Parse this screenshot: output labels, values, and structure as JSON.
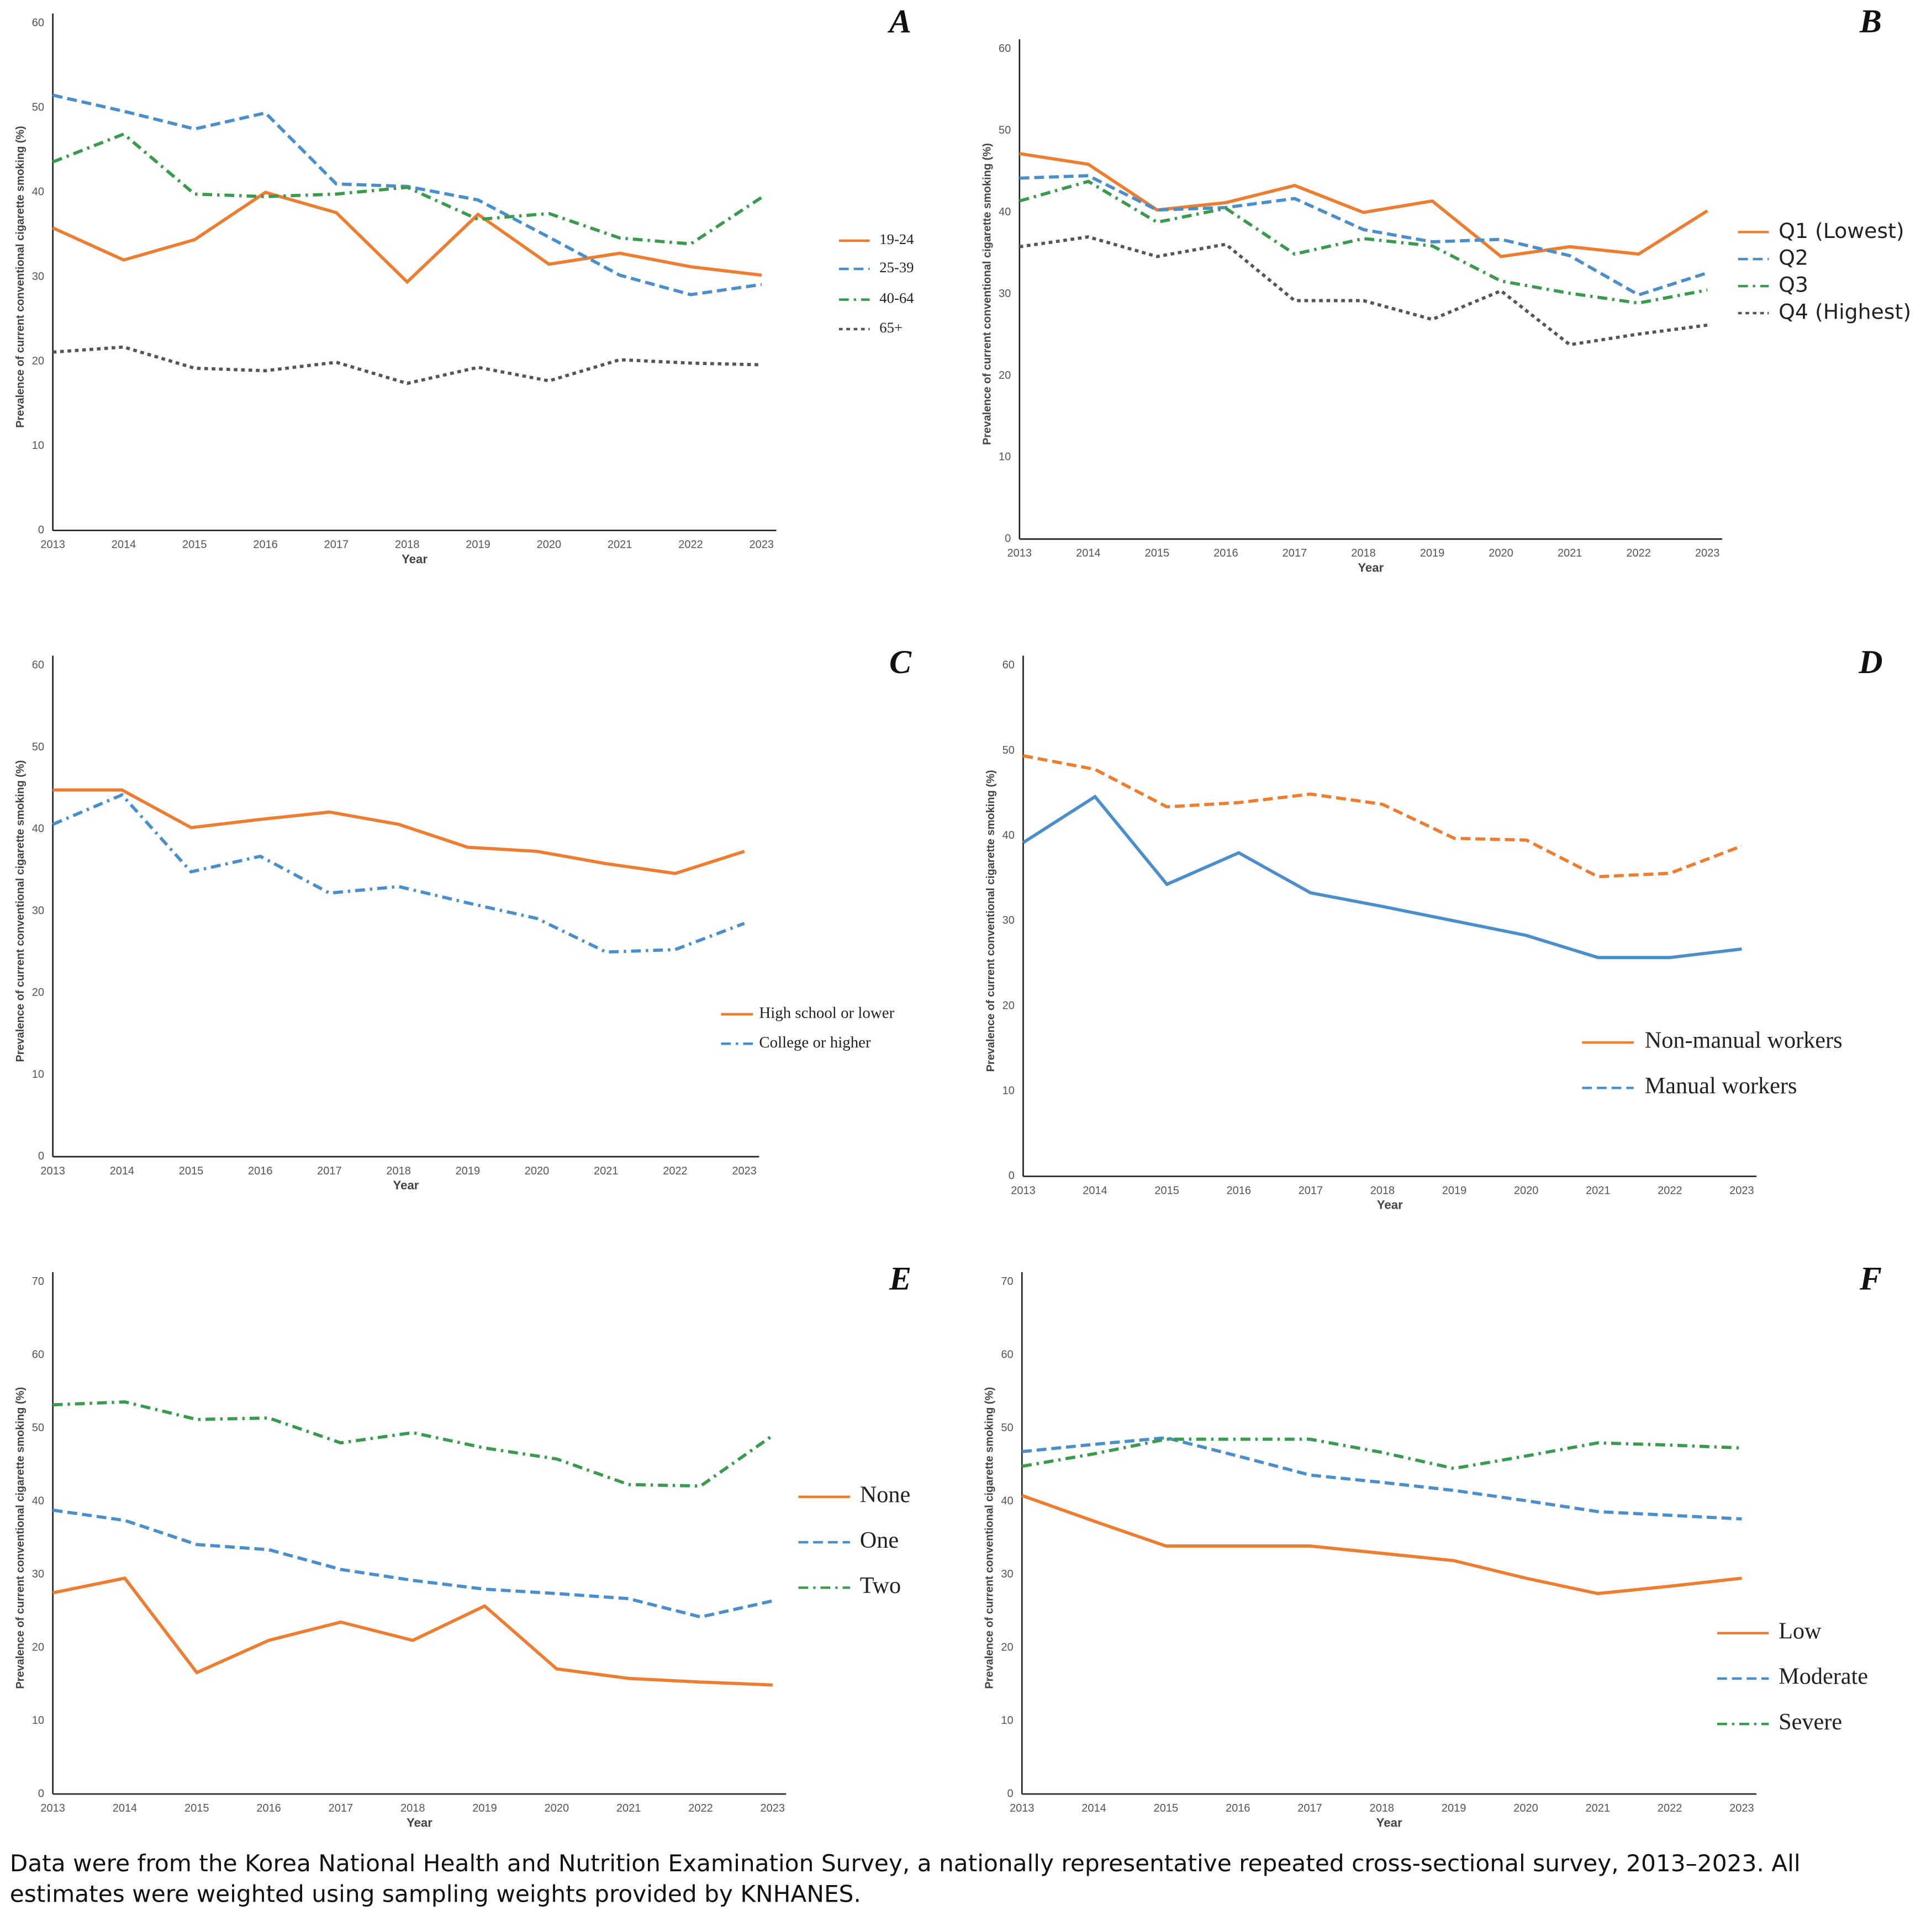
{
  "chart_data": [
    {
      "type": "line",
      "panel_label": "A",
      "y_label": "Prevalence of current conventional cigarette smoking (%)",
      "x_label": "Year",
      "categories": [
        "2013",
        "2014",
        "2015",
        "2016",
        "2017",
        "2018",
        "2019",
        "2020",
        "2021",
        "2022",
        "2023"
      ],
      "ylim": [
        0,
        60
      ],
      "yticks": [
        0,
        10,
        20,
        30,
        40,
        50,
        60
      ],
      "series": [
        {
          "name": "19-24",
          "color": "#ed7d31",
          "line_style": "solid",
          "values": [
            35.8,
            32.0,
            34.4,
            40.0,
            37.6,
            29.4,
            37.4,
            31.5,
            32.8,
            31.2,
            30.2
          ]
        },
        {
          "name": "25-39",
          "color": "#4a8fcc",
          "line_style": "dashed",
          "values": [
            51.5,
            49.6,
            47.5,
            49.4,
            41.0,
            40.7,
            39.1,
            34.7,
            30.2,
            27.9,
            29.1
          ]
        },
        {
          "name": "40-64",
          "color": "#3a9b4f",
          "line_style": "dashdot",
          "values": [
            43.6,
            46.9,
            39.8,
            39.5,
            39.8,
            40.6,
            36.8,
            37.5,
            34.6,
            33.9,
            39.4
          ]
        },
        {
          "name": "65+",
          "color": "#555555",
          "line_style": "dotted",
          "values": [
            21.1,
            21.7,
            19.2,
            18.9,
            19.9,
            17.4,
            19.3,
            17.7,
            20.2,
            19.8,
            19.6
          ]
        }
      ]
    },
    {
      "type": "line",
      "panel_label": "B",
      "y_label": "Prevalence of current conventional cigarette smoking (%)",
      "x_label": "Year",
      "categories": [
        "2013",
        "2014",
        "2015",
        "2016",
        "2017",
        "2018",
        "2019",
        "2020",
        "2021",
        "2022",
        "2023"
      ],
      "ylim": [
        0,
        60
      ],
      "yticks": [
        0,
        10,
        20,
        30,
        40,
        50,
        60
      ],
      "series": [
        {
          "name": "Q1 (Lowest)",
          "color": "#ed7d31",
          "line_style": "solid",
          "values": [
            47.2,
            45.9,
            40.3,
            41.2,
            43.3,
            40.0,
            41.4,
            34.6,
            35.8,
            34.9,
            40.2
          ]
        },
        {
          "name": "Q2",
          "color": "#4a8fcc",
          "line_style": "dashed",
          "values": [
            44.2,
            44.5,
            40.3,
            40.6,
            41.7,
            37.9,
            36.4,
            36.7,
            34.7,
            29.9,
            32.6
          ]
        },
        {
          "name": "Q3",
          "color": "#3a9b4f",
          "line_style": "dashdot",
          "values": [
            41.4,
            43.8,
            38.8,
            40.5,
            34.9,
            36.8,
            35.9,
            31.6,
            30.1,
            28.9,
            30.5
          ]
        },
        {
          "name": "Q4 (Highest)",
          "color": "#555555",
          "line_style": "dotted",
          "values": [
            35.8,
            37.0,
            34.6,
            36.1,
            29.2,
            29.2,
            26.9,
            30.4,
            23.8,
            25.1,
            26.2
          ]
        }
      ]
    },
    {
      "type": "line",
      "panel_label": "C",
      "y_label": "Prevalence of current conventional cigarette smoking (%)",
      "x_label": "Year",
      "categories": [
        "2013",
        "2014",
        "2015",
        "2016",
        "2017",
        "2018",
        "2019",
        "2020",
        "2021",
        "2022",
        "2023"
      ],
      "ylim": [
        0,
        60
      ],
      "yticks": [
        0,
        10,
        20,
        30,
        40,
        50,
        60
      ],
      "series": [
        {
          "name": "High school or lower",
          "color": "#ed7d31",
          "line_style": "solid",
          "values": [
            44.8,
            44.8,
            40.2,
            41.2,
            42.1,
            40.6,
            37.8,
            37.3,
            35.8,
            34.6,
            37.3
          ]
        },
        {
          "name": "College or higher",
          "color": "#4a8fcc",
          "line_style": "dashdot",
          "values": [
            40.6,
            44.2,
            34.8,
            36.7,
            32.2,
            33.0,
            31.0,
            29.1,
            25.0,
            25.3,
            28.5
          ]
        }
      ]
    },
    {
      "type": "line",
      "panel_label": "D",
      "y_label": "Prevalence of current conventional cigarette smoking (%)",
      "x_label": "Year",
      "categories": [
        "2013",
        "2014",
        "2015",
        "2016",
        "2017",
        "2018",
        "2019",
        "2020",
        "2021",
        "2022",
        "2023"
      ],
      "ylim": [
        0,
        60
      ],
      "yticks": [
        0,
        10,
        20,
        30,
        40,
        50,
        60
      ],
      "series": [
        {
          "name": "Non-manual workers",
          "color": "#ed7d31",
          "line_style": "dashed",
          "legend_style": "solid",
          "values": [
            49.4,
            47.8,
            43.4,
            43.9,
            44.9,
            43.7,
            39.7,
            39.5,
            35.2,
            35.6,
            38.8
          ]
        },
        {
          "name": "Manual workers",
          "color": "#4a8fcc",
          "line_style": "solid",
          "legend_style": "dashed",
          "values": [
            39.2,
            44.6,
            34.3,
            38.0,
            33.3,
            31.7,
            30.0,
            28.3,
            25.7,
            25.7,
            26.7
          ]
        }
      ]
    },
    {
      "type": "line",
      "panel_label": "E",
      "y_label": "Prevalence of current conventional cigarette smoking (%)",
      "x_label": "Year",
      "categories": [
        "2013",
        "2014",
        "2015",
        "2016",
        "2017",
        "2018",
        "2019",
        "2020",
        "2021",
        "2022",
        "2023"
      ],
      "ylim": [
        0,
        70
      ],
      "yticks": [
        0,
        10,
        20,
        30,
        40,
        50,
        60,
        70
      ],
      "series": [
        {
          "name": "None",
          "color": "#ed7d31",
          "line_style": "solid",
          "values": [
            27.5,
            29.5,
            16.6,
            21.0,
            23.5,
            21.0,
            25.7,
            17.1,
            15.8,
            15.3,
            14.9
          ]
        },
        {
          "name": "One",
          "color": "#4a8fcc",
          "line_style": "dashed",
          "values": [
            38.8,
            37.4,
            34.1,
            33.4,
            30.7,
            29.2,
            28.0,
            27.4,
            26.7,
            24.2,
            26.4
          ]
        },
        {
          "name": "Two",
          "color": "#3a9b4f",
          "line_style": "dashdot",
          "values": [
            53.2,
            53.6,
            51.2,
            51.4,
            48.0,
            49.4,
            47.3,
            45.8,
            42.3,
            42.1,
            49.0
          ]
        }
      ]
    },
    {
      "type": "line",
      "panel_label": "F",
      "y_label": "Prevalence of current conventional cigarette smoking (%)",
      "x_label": "Year",
      "categories": [
        "2013",
        "2014",
        "2015",
        "2016",
        "2017",
        "2018",
        "2019",
        "2020",
        "2021",
        "2022",
        "2023"
      ],
      "ylim": [
        0,
        70
      ],
      "yticks": [
        0,
        10,
        20,
        30,
        40,
        50,
        60,
        70
      ],
      "series": [
        {
          "name": "Low",
          "color": "#ed7d31",
          "line_style": "solid",
          "values": [
            40.8,
            37.3,
            33.9,
            33.9,
            33.9,
            32.9,
            31.9,
            29.5,
            27.4,
            28.4,
            29.5
          ]
        },
        {
          "name": "Moderate",
          "color": "#4a8fcc",
          "line_style": "dashed",
          "values": [
            46.8,
            47.8,
            48.7,
            46.2,
            43.6,
            42.6,
            41.5,
            40.1,
            38.6,
            38.1,
            37.6
          ]
        },
        {
          "name": "Severe",
          "color": "#3a9b4f",
          "line_style": "dashdot",
          "values": [
            44.8,
            46.5,
            48.5,
            48.5,
            48.5,
            46.7,
            44.5,
            46.2,
            48.0,
            47.7,
            47.3
          ]
        }
      ]
    }
  ],
  "footnote": "Data were from the Korea National Health and Nutrition Examination Survey, a nationally representative repeated cross-sectional survey, 2013–2023. All estimates were weighted using sampling weights provided by KNHANES."
}
